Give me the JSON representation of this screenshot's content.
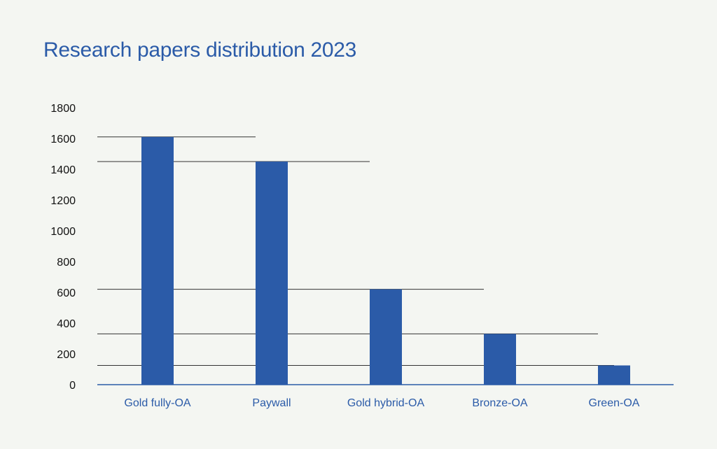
{
  "chart_data": {
    "type": "bar",
    "title": "Research papers distribution 2023",
    "xlabel": "",
    "ylabel": "",
    "categories": [
      "Gold fully-OA",
      "Paywall",
      "Gold hybrid-OA",
      "Bronze-OA",
      "Green-OA"
    ],
    "values": [
      1610,
      1450,
      620,
      330,
      125
    ],
    "ylim": [
      0,
      1800
    ],
    "yticks": [
      "0",
      "200",
      "400",
      "600",
      "800",
      "1000",
      "1200",
      "1400",
      "1600",
      "1800"
    ],
    "grid": "partial horizontal lines at bar tops",
    "legend": "none",
    "colors": {
      "bar": "#2b5ba8",
      "title": "#2b5ba8",
      "axis_label": "#2b5ba8",
      "tick_label": "#111111",
      "gridline": "#333333",
      "background": "#f4f6f2"
    }
  }
}
